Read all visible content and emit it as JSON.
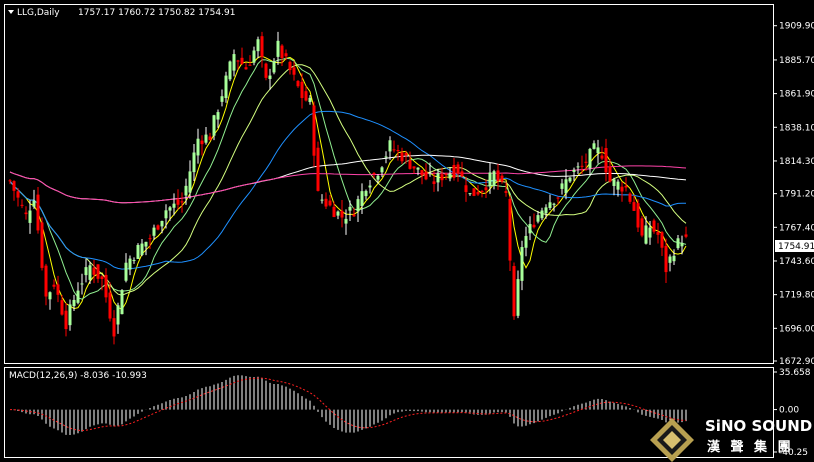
{
  "header": {
    "symbol_label": "LLG,Daily",
    "ohlc_label": "1757.17 1760.72 1750.82 1754.91"
  },
  "macd_panel": {
    "label": "MACD(12,26,9) -8.036 -10.993"
  },
  "logo": {
    "name": "SiNO SOUND",
    "chinese": "漢 聲 集 團"
  },
  "chart_data": [
    {
      "type": "candlestick",
      "ylim": [
        1672.9,
        1921.0
      ],
      "price_ticks": [
        {
          "value": 1909.9,
          "label": "1909.90"
        },
        {
          "value": 1885.7,
          "label": "1885.70"
        },
        {
          "value": 1861.9,
          "label": "1861.90"
        },
        {
          "value": 1838.1,
          "label": "1838.10"
        },
        {
          "value": 1814.3,
          "label": "1814.30"
        },
        {
          "value": 1791.2,
          "label": "1791.20"
        },
        {
          "value": 1767.4,
          "label": "1767.40"
        },
        {
          "value": 1743.6,
          "label": "1743.60"
        },
        {
          "value": 1719.8,
          "label": "1719.80"
        },
        {
          "value": 1696.0,
          "label": "1696.00"
        },
        {
          "value": 1672.9,
          "label": "1672.90"
        }
      ],
      "current_price": {
        "value": 1754.91,
        "label": "1754.91"
      },
      "colors": {
        "up": "#ffffff",
        "down": "#ff0000",
        "bg": "#000000"
      },
      "moving_averages": [
        {
          "color": "#ffff00"
        },
        {
          "color": "#90ee90"
        },
        {
          "color": "#d4ff80"
        },
        {
          "color": "#1e90ff"
        },
        {
          "color": "#ffffff"
        },
        {
          "color": "#ff44aa"
        }
      ]
    },
    {
      "type": "bar",
      "ylim": [
        -40.25,
        35.658
      ],
      "ticks": [
        {
          "value": 35.658,
          "label": "35.658"
        },
        {
          "value": 0,
          "label": "0.00"
        },
        {
          "value": -40.25,
          "label": "-40.25"
        }
      ],
      "histogram_color": "#ffffff",
      "signal_color": "#ff2020"
    }
  ]
}
